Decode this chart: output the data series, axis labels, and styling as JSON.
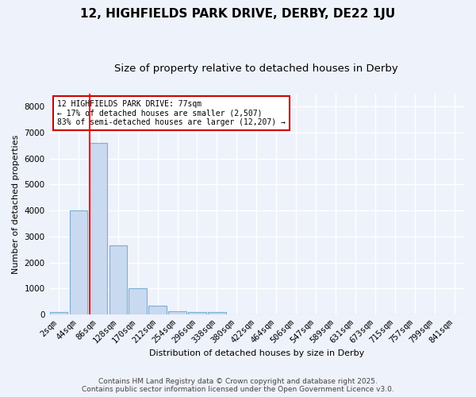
{
  "title1": "12, HIGHFIELDS PARK DRIVE, DERBY, DE22 1JU",
  "title2": "Size of property relative to detached houses in Derby",
  "xlabel": "Distribution of detached houses by size in Derby",
  "ylabel": "Number of detached properties",
  "categories": [
    "2sqm",
    "44sqm",
    "86sqm",
    "128sqm",
    "170sqm",
    "212sqm",
    "254sqm",
    "296sqm",
    "338sqm",
    "380sqm",
    "422sqm",
    "464sqm",
    "506sqm",
    "547sqm",
    "589sqm",
    "631sqm",
    "673sqm",
    "715sqm",
    "757sqm",
    "799sqm",
    "841sqm"
  ],
  "values": [
    100,
    4000,
    6600,
    2650,
    1000,
    330,
    120,
    100,
    100,
    0,
    0,
    0,
    0,
    0,
    0,
    0,
    0,
    0,
    0,
    0,
    0
  ],
  "bar_color": "#c9d9f0",
  "bar_edge_color": "#7ab0d4",
  "red_line_index": 1.5,
  "ylim": [
    0,
    8500
  ],
  "yticks": [
    0,
    1000,
    2000,
    3000,
    4000,
    5000,
    6000,
    7000,
    8000
  ],
  "annotation_title": "12 HIGHFIELDS PARK DRIVE: 77sqm",
  "annotation_line1": "← 17% of detached houses are smaller (2,507)",
  "annotation_line2": "83% of semi-detached houses are larger (12,207) →",
  "annotation_box_color": "#ffffff",
  "annotation_box_edge": "#cc0000",
  "footer1": "Contains HM Land Registry data © Crown copyright and database right 2025.",
  "footer2": "Contains public sector information licensed under the Open Government Licence v3.0.",
  "background_color": "#eef2fb",
  "grid_color": "#ffffff",
  "title1_fontsize": 11,
  "title2_fontsize": 9.5,
  "axis_fontsize": 8,
  "tick_fontsize": 7.5,
  "footer_fontsize": 6.5
}
